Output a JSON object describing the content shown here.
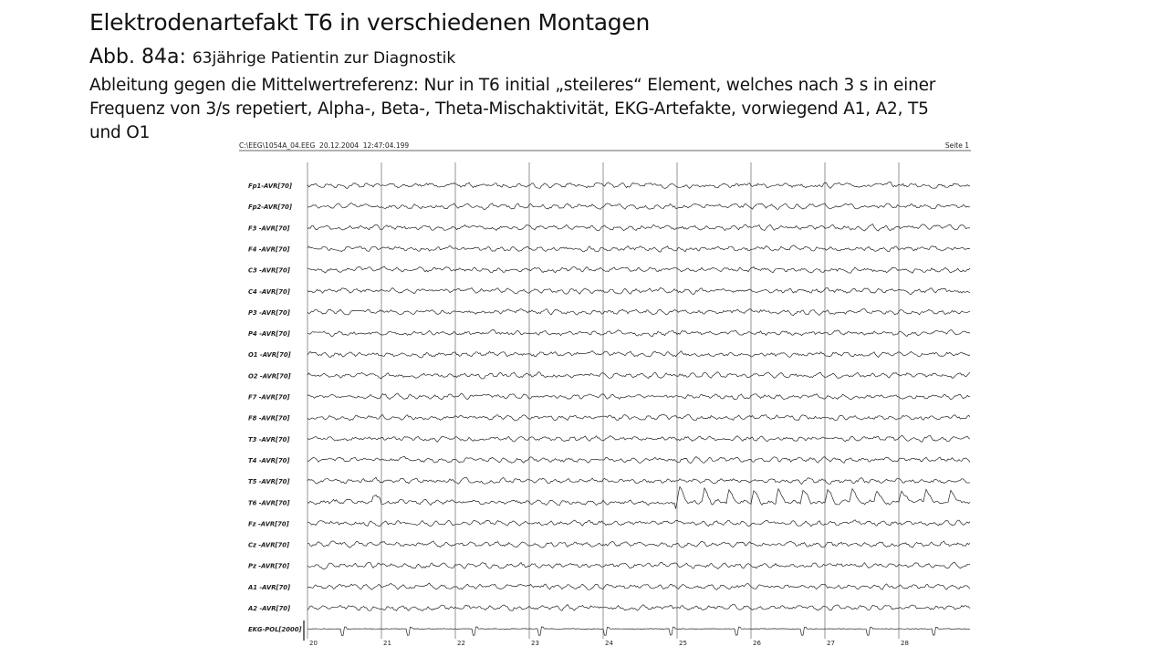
{
  "slide": {
    "title": "Elektrodenartefakt T6 in verschiedenen Montagen",
    "figure_label": "Abb. 84a:",
    "figure_text": "63jährige Patientin zur Diagnostik",
    "description": [
      "Ableitung gegen die Mittelwertreferenz: Nur in T6 initial „steileres“ Element, welches nach 3 s in einer",
      "Frequenz von 3/s repetiert, Alpha-, Beta-, Theta-Mischaktivität, EKG-Artefakte, vorwiegend A1, A2, T5",
      "und O1"
    ]
  },
  "eeg": {
    "file_header": "C:\\EEG\\1054A_04.EEG  20.12.2004  12:47:04.199",
    "page": "Seite 1",
    "channels": [
      "Fp1-AVR[70]",
      "Fp2-AVR[70]",
      "F3 -AVR[70]",
      "F4 -AVR[70]",
      "C3 -AVR[70]",
      "C4 -AVR[70]",
      "P3 -AVR[70]",
      "P4 -AVR[70]",
      "O1 -AVR[70]",
      "O2 -AVR[70]",
      "F7 -AVR[70]",
      "F8 -AVR[70]",
      "T3 -AVR[70]",
      "T4 -AVR[70]",
      "T5 -AVR[70]",
      "T6 -AVR[70]",
      "Fz -AVR[70]",
      "Cz -AVR[70]",
      "Pz -AVR[70]",
      "A1 -AVR[70]",
      "A2 -AVR[70]",
      "EKG-POL[2000]"
    ],
    "seconds": [
      20,
      21,
      22,
      23,
      24,
      25,
      26,
      27,
      28
    ]
  }
}
